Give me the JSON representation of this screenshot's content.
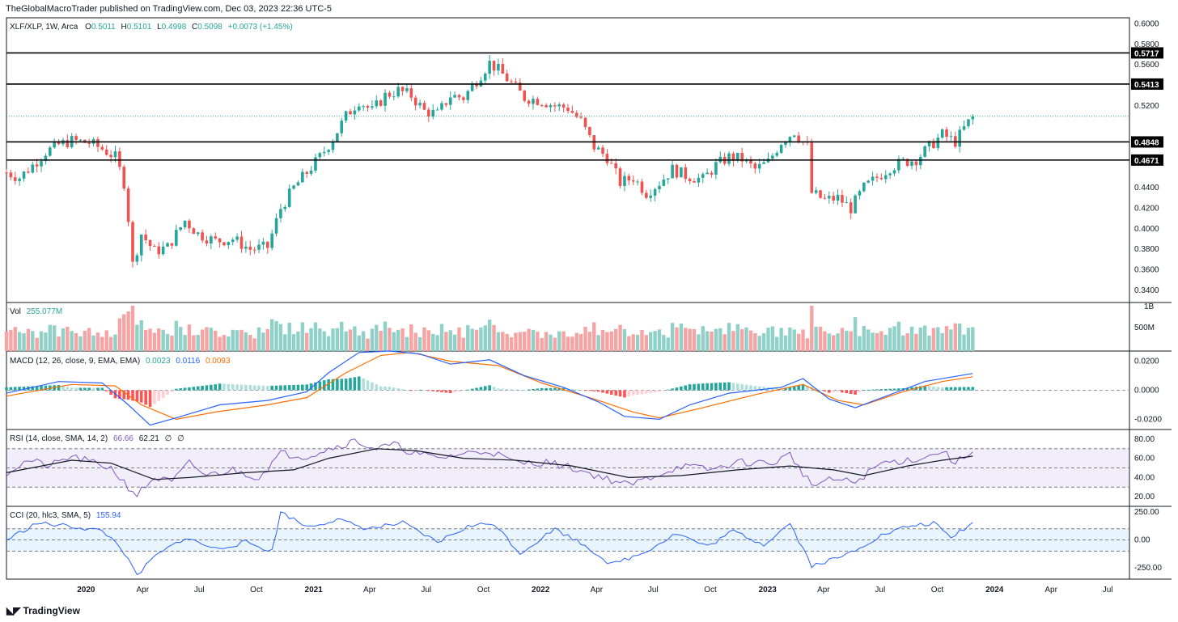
{
  "publisher": "TheGlobalMacroTrader published on TradingView.com, Dec 03, 2023 22:36 UTC-5",
  "footer": {
    "brand": "TradingView",
    "logo_icon": "tradingview-logo-icon"
  },
  "colors": {
    "up": "#26a69a",
    "down": "#ef5350",
    "vol_up": "#8fd1c8",
    "vol_down": "#f5a3a3",
    "macd": "#2962ff",
    "signal": "#ff6d00",
    "rsi": "#7e57c2",
    "cci": "#2962ff",
    "text": "#131722"
  },
  "chart_data": [
    {
      "type": "candlestick",
      "symbol": "XLF/XLP, 1W, Arca",
      "ohlc_label": {
        "o": "O",
        "o_val": "0.5011",
        "h": "H",
        "h_val": "0.5101",
        "l": "L",
        "l_val": "0.4998",
        "c": "C",
        "c_val": "0.5098",
        "chg": "+0.0073 (+1.45%)"
      },
      "x_range": [
        "2019-08-26",
        "2024-08-05"
      ],
      "ylim": [
        0.328,
        0.606
      ],
      "yticks": [
        "0.6000",
        "0.5800",
        "0.5600",
        "0.5200",
        "0.4400",
        "0.4200",
        "0.4000",
        "0.3800",
        "0.3600",
        "0.3400"
      ],
      "horizontal_levels": [
        0.5717,
        0.5413,
        0.4848,
        0.4671
      ],
      "level_labels": [
        "0.5717",
        "0.5413",
        "0.4848",
        "0.4671"
      ],
      "last_price": 0.5098,
      "close_path": [
        [
          "2019-08-26",
          0.455
        ],
        [
          "2019-09-16",
          0.45
        ],
        [
          "2019-10-07",
          0.462
        ],
        [
          "2019-10-28",
          0.475
        ],
        [
          "2019-11-18",
          0.482
        ],
        [
          "2019-12-09",
          0.486
        ],
        [
          "2020-01-06",
          0.484
        ],
        [
          "2020-01-27",
          0.478
        ],
        [
          "2020-02-17",
          0.47
        ],
        [
          "2020-03-02",
          0.445
        ],
        [
          "2020-03-09",
          0.41
        ],
        [
          "2020-03-16",
          0.365
        ],
        [
          "2020-03-30",
          0.395
        ],
        [
          "2020-04-20",
          0.378
        ],
        [
          "2020-05-11",
          0.382
        ],
        [
          "2020-06-08",
          0.408
        ],
        [
          "2020-06-29",
          0.395
        ],
        [
          "2020-07-27",
          0.388
        ],
        [
          "2020-08-24",
          0.39
        ],
        [
          "2020-09-21",
          0.38
        ],
        [
          "2020-10-19",
          0.382
        ],
        [
          "2020-11-09",
          0.42
        ],
        [
          "2020-11-30",
          0.44
        ],
        [
          "2020-12-21",
          0.455
        ],
        [
          "2021-01-11",
          0.47
        ],
        [
          "2021-02-01",
          0.488
        ],
        [
          "2021-02-22",
          0.51
        ],
        [
          "2021-03-15",
          0.525
        ],
        [
          "2021-04-05",
          0.515
        ],
        [
          "2021-04-26",
          0.53
        ],
        [
          "2021-05-17",
          0.535
        ],
        [
          "2021-06-07",
          0.53
        ],
        [
          "2021-06-28",
          0.515
        ],
        [
          "2021-07-19",
          0.512
        ],
        [
          "2021-08-09",
          0.53
        ],
        [
          "2021-08-30",
          0.528
        ],
        [
          "2021-09-20",
          0.545
        ],
        [
          "2021-10-11",
          0.562
        ],
        [
          "2021-10-25",
          0.555
        ],
        [
          "2021-11-15",
          0.542
        ],
        [
          "2021-12-06",
          0.528
        ],
        [
          "2022-01-03",
          0.525
        ],
        [
          "2022-01-24",
          0.52
        ],
        [
          "2022-02-14",
          0.518
        ],
        [
          "2022-03-07",
          0.505
        ],
        [
          "2022-03-28",
          0.48
        ],
        [
          "2022-04-18",
          0.47
        ],
        [
          "2022-05-09",
          0.445
        ],
        [
          "2022-05-30",
          0.45
        ],
        [
          "2022-06-20",
          0.435
        ],
        [
          "2022-07-11",
          0.445
        ],
        [
          "2022-08-01",
          0.458
        ],
        [
          "2022-08-22",
          0.452
        ],
        [
          "2022-09-19",
          0.448
        ],
        [
          "2022-10-10",
          0.462
        ],
        [
          "2022-10-31",
          0.47
        ],
        [
          "2022-11-21",
          0.468
        ],
        [
          "2022-12-12",
          0.458
        ],
        [
          "2023-01-02",
          0.465
        ],
        [
          "2023-01-23",
          0.485
        ],
        [
          "2023-02-13",
          0.495
        ],
        [
          "2023-03-06",
          0.48
        ],
        [
          "2023-03-13",
          0.435
        ],
        [
          "2023-04-03",
          0.428
        ],
        [
          "2023-04-24",
          0.43
        ],
        [
          "2023-05-15",
          0.42
        ],
        [
          "2023-06-05",
          0.44
        ],
        [
          "2023-06-26",
          0.45
        ],
        [
          "2023-07-17",
          0.46
        ],
        [
          "2023-08-07",
          0.465
        ],
        [
          "2023-08-28",
          0.468
        ],
        [
          "2023-09-18",
          0.48
        ],
        [
          "2023-10-09",
          0.492
        ],
        [
          "2023-10-30",
          0.485
        ],
        [
          "2023-11-13",
          0.498
        ],
        [
          "2023-11-27",
          0.5098
        ]
      ]
    },
    {
      "type": "bar",
      "name": "Vol",
      "value_label": "255.077M",
      "yticks": [
        "1B",
        "500M"
      ]
    },
    {
      "type": "line",
      "name": "MACD",
      "params": "(12, 26, close, 9, EMA, EMA)",
      "values": [
        "0.0023",
        "0.0116",
        "0.0093"
      ],
      "ylim": [
        -0.027,
        0.027
      ],
      "yticks": [
        "0.0200",
        "0.0000",
        "-0.0200"
      ],
      "macd_path": [
        [
          "2019-08-26",
          -0.002
        ],
        [
          "2019-11-18",
          0.006
        ],
        [
          "2020-01-27",
          0.005
        ],
        [
          "2020-03-09",
          -0.01
        ],
        [
          "2020-04-13",
          -0.024
        ],
        [
          "2020-05-25",
          -0.019
        ],
        [
          "2020-08-03",
          -0.01
        ],
        [
          "2020-10-19",
          -0.007
        ],
        [
          "2020-12-21",
          -0.001
        ],
        [
          "2021-01-25",
          0.012
        ],
        [
          "2021-03-15",
          0.026
        ],
        [
          "2021-05-03",
          0.027
        ],
        [
          "2021-06-21",
          0.025
        ],
        [
          "2021-08-09",
          0.018
        ],
        [
          "2021-10-11",
          0.021
        ],
        [
          "2021-12-06",
          0.01
        ],
        [
          "2022-02-07",
          0.002
        ],
        [
          "2022-04-04",
          -0.008
        ],
        [
          "2022-05-16",
          -0.018
        ],
        [
          "2022-07-11",
          -0.02
        ],
        [
          "2022-08-29",
          -0.01
        ],
        [
          "2022-10-31",
          -0.002
        ],
        [
          "2023-01-23",
          0.002
        ],
        [
          "2023-02-27",
          0.008
        ],
        [
          "2023-04-10",
          -0.006
        ],
        [
          "2023-05-22",
          -0.012
        ],
        [
          "2023-07-17",
          -0.003
        ],
        [
          "2023-09-11",
          0.006
        ],
        [
          "2023-11-27",
          0.0116
        ]
      ],
      "signal_path": [
        [
          "2019-08-26",
          -0.004
        ],
        [
          "2019-12-09",
          0.004
        ],
        [
          "2020-02-17",
          0.003
        ],
        [
          "2020-03-30",
          -0.01
        ],
        [
          "2020-05-25",
          -0.02
        ],
        [
          "2020-07-27",
          -0.015
        ],
        [
          "2020-10-19",
          -0.01
        ],
        [
          "2020-12-21",
          -0.005
        ],
        [
          "2021-02-22",
          0.012
        ],
        [
          "2021-04-19",
          0.024
        ],
        [
          "2021-06-07",
          0.026
        ],
        [
          "2021-08-09",
          0.02
        ],
        [
          "2021-10-25",
          0.017
        ],
        [
          "2022-01-03",
          0.005
        ],
        [
          "2022-03-28",
          -0.006
        ],
        [
          "2022-05-30",
          -0.015
        ],
        [
          "2022-07-11",
          -0.019
        ],
        [
          "2022-09-19",
          -0.012
        ],
        [
          "2022-12-12",
          -0.003
        ],
        [
          "2023-02-27",
          0.004
        ],
        [
          "2023-04-24",
          -0.007
        ],
        [
          "2023-06-05",
          -0.01
        ],
        [
          "2023-08-07",
          -0.001
        ],
        [
          "2023-10-09",
          0.006
        ],
        [
          "2023-11-27",
          0.0093
        ]
      ]
    },
    {
      "type": "line",
      "name": "RSI",
      "params": "(14, close, SMA, 14, 2)",
      "values": [
        "66.66",
        "62.21",
        "∅",
        "∅"
      ],
      "ylim": [
        10,
        90
      ],
      "yticks": [
        "80.00",
        "60.00",
        "40.00",
        "20.00"
      ],
      "bands": [
        70,
        50,
        30
      ],
      "rsi_path": [
        [
          "2019-08-26",
          45
        ],
        [
          "2019-09-30",
          58
        ],
        [
          "2019-11-04",
          52
        ],
        [
          "2019-12-09",
          62
        ],
        [
          "2020-01-13",
          55
        ],
        [
          "2020-02-10",
          50
        ],
        [
          "2020-03-09",
          30
        ],
        [
          "2020-03-23",
          22
        ],
        [
          "2020-04-20",
          40
        ],
        [
          "2020-05-18",
          35
        ],
        [
          "2020-06-15",
          55
        ],
        [
          "2020-07-13",
          42
        ],
        [
          "2020-08-24",
          48
        ],
        [
          "2020-10-05",
          40
        ],
        [
          "2020-11-09",
          65
        ],
        [
          "2020-12-21",
          62
        ],
        [
          "2021-01-25",
          70
        ],
        [
          "2021-03-08",
          78
        ],
        [
          "2021-04-12",
          70
        ],
        [
          "2021-05-10",
          74
        ],
        [
          "2021-06-14",
          65
        ],
        [
          "2021-07-19",
          60
        ],
        [
          "2021-08-30",
          65
        ],
        [
          "2021-10-11",
          68
        ],
        [
          "2021-11-22",
          55
        ],
        [
          "2022-01-10",
          56
        ],
        [
          "2022-02-21",
          50
        ],
        [
          "2022-04-11",
          40
        ],
        [
          "2022-05-23",
          32
        ],
        [
          "2022-07-04",
          42
        ],
        [
          "2022-08-15",
          52
        ],
        [
          "2022-10-03",
          48
        ],
        [
          "2022-11-14",
          56
        ],
        [
          "2023-01-09",
          55
        ],
        [
          "2023-02-06",
          64
        ],
        [
          "2023-03-13",
          32
        ],
        [
          "2023-04-17",
          38
        ],
        [
          "2023-05-22",
          35
        ],
        [
          "2023-07-03",
          55
        ],
        [
          "2023-08-14",
          58
        ],
        [
          "2023-09-18",
          62
        ],
        [
          "2023-10-09",
          68
        ],
        [
          "2023-10-30",
          55
        ],
        [
          "2023-11-27",
          66.66
        ]
      ],
      "rsi_ma_path": [
        [
          "2019-08-26",
          45
        ],
        [
          "2019-12-09",
          58
        ],
        [
          "2020-02-10",
          55
        ],
        [
          "2020-04-20",
          38
        ],
        [
          "2020-06-15",
          40
        ],
        [
          "2020-09-14",
          45
        ],
        [
          "2020-11-30",
          48
        ],
        [
          "2021-01-25",
          60
        ],
        [
          "2021-04-12",
          70
        ],
        [
          "2021-06-14",
          68
        ],
        [
          "2021-08-30",
          60
        ],
        [
          "2021-11-22",
          58
        ],
        [
          "2022-02-21",
          52
        ],
        [
          "2022-05-23",
          40
        ],
        [
          "2022-08-15",
          42
        ],
        [
          "2022-11-14",
          48
        ],
        [
          "2023-02-06",
          52
        ],
        [
          "2023-04-17",
          48
        ],
        [
          "2023-06-05",
          42
        ],
        [
          "2023-08-14",
          52
        ],
        [
          "2023-10-09",
          58
        ],
        [
          "2023-11-27",
          62.21
        ]
      ]
    },
    {
      "type": "line",
      "name": "CCI",
      "params": "(20, hlc3, SMA, 5)",
      "values": [
        "155.94"
      ],
      "ylim": [
        -350,
        300
      ],
      "yticks": [
        "250.00",
        "0.00",
        "-250.00"
      ],
      "bands": [
        100,
        0,
        -100
      ],
      "cci_path": [
        [
          "2019-08-26",
          0
        ],
        [
          "2019-10-14",
          150
        ],
        [
          "2019-12-09",
          120
        ],
        [
          "2020-01-27",
          80
        ],
        [
          "2020-02-24",
          -50
        ],
        [
          "2020-03-23",
          -320
        ],
        [
          "2020-04-20",
          -150
        ],
        [
          "2020-06-08",
          20
        ],
        [
          "2020-07-27",
          -80
        ],
        [
          "2020-09-14",
          -20
        ],
        [
          "2020-10-26",
          -100
        ],
        [
          "2020-11-09",
          250
        ],
        [
          "2020-12-21",
          120
        ],
        [
          "2021-02-08",
          180
        ],
        [
          "2021-03-29",
          100
        ],
        [
          "2021-05-24",
          150
        ],
        [
          "2021-07-19",
          -20
        ],
        [
          "2021-09-06",
          120
        ],
        [
          "2021-10-18",
          150
        ],
        [
          "2021-11-29",
          -120
        ],
        [
          "2022-01-24",
          100
        ],
        [
          "2022-03-14",
          -50
        ],
        [
          "2022-04-25",
          -220
        ],
        [
          "2022-06-13",
          -120
        ],
        [
          "2022-08-08",
          60
        ],
        [
          "2022-09-26",
          -60
        ],
        [
          "2022-11-07",
          80
        ],
        [
          "2022-12-26",
          -40
        ],
        [
          "2023-02-06",
          150
        ],
        [
          "2023-03-13",
          -230
        ],
        [
          "2023-05-01",
          -150
        ],
        [
          "2023-07-03",
          40
        ],
        [
          "2023-08-14",
          120
        ],
        [
          "2023-09-25",
          150
        ],
        [
          "2023-10-23",
          20
        ],
        [
          "2023-11-27",
          155.94
        ]
      ]
    }
  ],
  "x_axis": {
    "ticks": [
      {
        "date": "2020-01-01",
        "label": "2020",
        "bold": true
      },
      {
        "date": "2020-04-01",
        "label": "Apr"
      },
      {
        "date": "2020-07-01",
        "label": "Jul"
      },
      {
        "date": "2020-10-01",
        "label": "Oct"
      },
      {
        "date": "2021-01-01",
        "label": "2021",
        "bold": true
      },
      {
        "date": "2021-04-01",
        "label": "Apr"
      },
      {
        "date": "2021-07-01",
        "label": "Jul"
      },
      {
        "date": "2021-10-01",
        "label": "Oct"
      },
      {
        "date": "2022-01-01",
        "label": "2022",
        "bold": true
      },
      {
        "date": "2022-04-01",
        "label": "Apr"
      },
      {
        "date": "2022-07-01",
        "label": "Jul"
      },
      {
        "date": "2022-10-01",
        "label": "Oct"
      },
      {
        "date": "2023-01-01",
        "label": "2023",
        "bold": true
      },
      {
        "date": "2023-04-01",
        "label": "Apr"
      },
      {
        "date": "2023-07-01",
        "label": "Jul"
      },
      {
        "date": "2023-10-01",
        "label": "Oct"
      },
      {
        "date": "2024-01-01",
        "label": "2024",
        "bold": true
      },
      {
        "date": "2024-04-01",
        "label": "Apr"
      },
      {
        "date": "2024-07-01",
        "label": "Jul"
      }
    ]
  }
}
